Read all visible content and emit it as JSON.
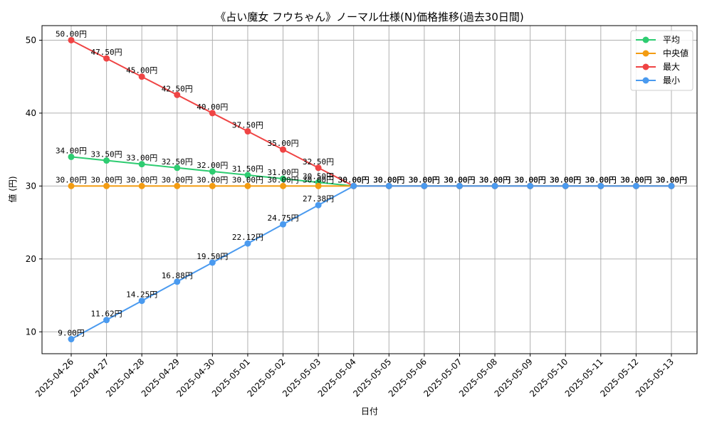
{
  "chart_data": {
    "type": "line",
    "title": "《占い魔女 フウちゃん》ノーマル仕様(N)価格推移(過去30日間)",
    "xlabel": "日付",
    "ylabel": "値 (円)",
    "ylim": [
      7,
      52
    ],
    "yticks": [
      10,
      20,
      30,
      40,
      50
    ],
    "grid": true,
    "legend_position": "top-right",
    "label_suffix": "円",
    "categories": [
      "2025-04-26",
      "2025-04-27",
      "2025-04-28",
      "2025-04-29",
      "2025-04-30",
      "2025-05-01",
      "2025-05-02",
      "2025-05-03",
      "2025-05-04",
      "2025-05-05",
      "2025-05-06",
      "2025-05-07",
      "2025-05-08",
      "2025-05-09",
      "2025-05-10",
      "2025-05-11",
      "2025-05-12",
      "2025-05-13"
    ],
    "series": [
      {
        "name": "平均",
        "color": "#2ecc71",
        "values": [
          34.0,
          33.5,
          33.0,
          32.5,
          32.0,
          31.5,
          31.0,
          30.5,
          30.0,
          30.0,
          30.0,
          30.0,
          30.0,
          30.0,
          30.0,
          30.0,
          30.0,
          30.0
        ]
      },
      {
        "name": "中央値",
        "color": "#f39c12",
        "values": [
          30.0,
          30.0,
          30.0,
          30.0,
          30.0,
          30.0,
          30.0,
          30.0,
          30.0,
          30.0,
          30.0,
          30.0,
          30.0,
          30.0,
          30.0,
          30.0,
          30.0,
          30.0
        ]
      },
      {
        "name": "最大",
        "color": "#ef4444",
        "values": [
          50.0,
          47.5,
          45.0,
          42.5,
          40.0,
          37.5,
          35.0,
          32.5,
          30.0,
          30.0,
          30.0,
          30.0,
          30.0,
          30.0,
          30.0,
          30.0,
          30.0,
          30.0
        ]
      },
      {
        "name": "最小",
        "color": "#4a9aef",
        "values": [
          9.0,
          11.62,
          14.25,
          16.88,
          19.5,
          22.12,
          24.75,
          27.38,
          30.0,
          30.0,
          30.0,
          30.0,
          30.0,
          30.0,
          30.0,
          30.0,
          30.0,
          30.0
        ]
      }
    ]
  }
}
